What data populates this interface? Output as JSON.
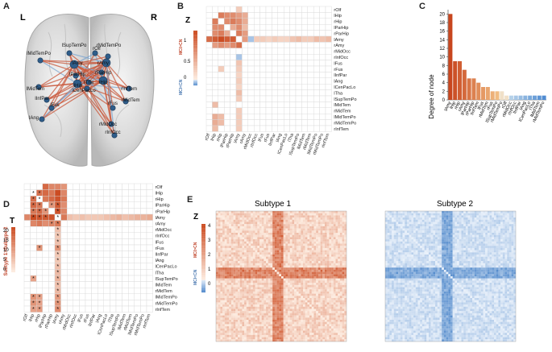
{
  "panels": {
    "a": {
      "letter": "A",
      "left": "L",
      "right": "R",
      "nodes": [
        "lSupTemPo",
        "rOlf",
        "rMidTemPo",
        "lMidTemPo",
        "lAmy",
        "rAmy",
        "lParHip",
        "lHip",
        "ITha",
        "rHip",
        "lCenPacLo",
        "rParHip",
        "lMidTem",
        "rInfTem",
        "lInfPar",
        "lFus",
        "rFus",
        "rMidTem",
        "lAng",
        "rMidOcc",
        "rInfOcc"
      ]
    },
    "b": {
      "letter": "B",
      "cbar_title": "Z",
      "cbar_top": "MCI>CN",
      "cbar_bottom": "MCI<CN",
      "ticks": [
        "1",
        "0.5",
        "0"
      ]
    },
    "c": {
      "letter": "C",
      "ylabel": "Degree of node",
      "yticks": [
        "0",
        "2",
        "4",
        "6",
        "8",
        "10",
        "12",
        "14",
        "16",
        "18",
        "20"
      ]
    },
    "d": {
      "letter": "D",
      "cbar_title": "T",
      "cbar_label": "Subtype 1>Subtype 2",
      "ticks": [
        "20",
        "15",
        "10",
        "5",
        "0"
      ]
    },
    "e": {
      "letter": "E",
      "title1": "Subtype 1",
      "title2": "Subtype 2",
      "cbar_title": "Z",
      "cbar_top": "MCI>CN",
      "cbar_bottom": "MCI<CN",
      "ticks": [
        "4",
        "3",
        "2",
        "1",
        "0"
      ]
    }
  },
  "regions": [
    "rOlf",
    "lHip",
    "rHip",
    "lParHip",
    "rParHip",
    "lAmy",
    "rAmy",
    "rMidOcc",
    "rInfOcc",
    "lFus",
    "rFus",
    "lInfPar",
    "lAng",
    "lCenPacLo",
    "lTha",
    "lSupTemPo",
    "lMidTem",
    "rMidTem",
    "lMidTemPo",
    "rMidTemPo",
    "rInfTem"
  ],
  "chart_data": [
    {
      "type": "heatmap",
      "id": "B",
      "rows": [
        "rOlf",
        "lHip",
        "rHip",
        "lParHip",
        "rParHip",
        "lAmy",
        "rAmy",
        "rMidOcc",
        "rInfOcc",
        "lFus",
        "rFus",
        "lInfPar",
        "lAng",
        "lCenPacLo",
        "lTha",
        "lSupTemPo",
        "lMidTem",
        "rMidTem",
        "lMidTemPo",
        "rMidTemPo",
        "rInfTem"
      ],
      "columns": [
        "rOlf",
        "lHip",
        "rHip",
        "lParHip",
        "rParHip",
        "lAmy",
        "rAmy",
        "rMidOcc",
        "rInfOcc",
        "lFus",
        "rFus",
        "lInfPar",
        "lAng",
        "lCenPacLo",
        "lTha",
        "lSupTemPo",
        "lMidTem",
        "rMidTem",
        "lMidTemPo",
        "rMidTemPo",
        "rInfTem"
      ],
      "cells": [
        [
          0,
          5,
          0.2
        ],
        [
          1,
          2,
          0.7
        ],
        [
          1,
          3,
          0.6
        ],
        [
          1,
          4,
          0.6
        ],
        [
          1,
          5,
          0.5
        ],
        [
          1,
          6,
          0.4
        ],
        [
          2,
          1,
          0.7
        ],
        [
          2,
          3,
          0.6
        ],
        [
          2,
          4,
          0.7
        ],
        [
          2,
          5,
          0.6
        ],
        [
          2,
          6,
          0.4
        ],
        [
          3,
          1,
          0.6
        ],
        [
          3,
          2,
          0.6
        ],
        [
          3,
          4,
          0.4
        ],
        [
          3,
          5,
          0.6
        ],
        [
          3,
          6,
          0.3
        ],
        [
          4,
          1,
          0.6
        ],
        [
          4,
          2,
          0.7
        ],
        [
          4,
          3,
          0.4
        ],
        [
          4,
          5,
          0.7
        ],
        [
          4,
          6,
          0.5
        ],
        [
          5,
          0,
          0.8
        ],
        [
          5,
          1,
          0.9
        ],
        [
          5,
          2,
          1.0
        ],
        [
          5,
          3,
          0.9
        ],
        [
          5,
          4,
          0.9
        ],
        [
          5,
          6,
          0.5
        ],
        [
          5,
          7,
          -0.4
        ],
        [
          5,
          8,
          0.2
        ],
        [
          5,
          9,
          0.2
        ],
        [
          5,
          10,
          0.15
        ],
        [
          5,
          11,
          0.2
        ],
        [
          5,
          12,
          0.15
        ],
        [
          5,
          13,
          0.15
        ],
        [
          5,
          14,
          0.25
        ],
        [
          5,
          15,
          0.3
        ],
        [
          5,
          16,
          0.2
        ],
        [
          5,
          17,
          0.2
        ],
        [
          5,
          18,
          0.3
        ],
        [
          5,
          19,
          0.25
        ],
        [
          5,
          20,
          0.3
        ],
        [
          6,
          1,
          0.5
        ],
        [
          6,
          2,
          0.6
        ],
        [
          6,
          3,
          0.5
        ],
        [
          6,
          4,
          0.6
        ],
        [
          6,
          5,
          0.8
        ],
        [
          8,
          5,
          -0.4
        ],
        [
          9,
          5,
          0.25
        ],
        [
          10,
          2,
          0.2
        ],
        [
          10,
          5,
          0.2
        ],
        [
          11,
          5,
          0.15
        ],
        [
          12,
          5,
          0.2
        ],
        [
          13,
          5,
          0.15
        ],
        [
          14,
          5,
          0.3
        ],
        [
          15,
          5,
          0.2
        ],
        [
          16,
          1,
          0.3
        ],
        [
          17,
          5,
          0.2
        ],
        [
          18,
          1,
          0.4
        ],
        [
          18,
          2,
          0.3
        ],
        [
          18,
          5,
          0.2
        ],
        [
          19,
          1,
          0.4
        ],
        [
          19,
          2,
          0.3
        ],
        [
          19,
          5,
          0.2
        ],
        [
          20,
          1,
          0.3
        ],
        [
          20,
          5,
          0.2
        ]
      ],
      "zlim": [
        -1,
        1
      ]
    },
    {
      "type": "bar",
      "id": "C",
      "categories": [
        "lAmy",
        "lHip",
        "rHip",
        "rAmy",
        "lParHip",
        "rParHip",
        "lInfTem",
        "lFus",
        "rMidTem",
        "rFus",
        "lSupTemPo",
        "rMidTemPo",
        "rOlf",
        "rMidOcc",
        "rInfOcc",
        "lInfPar",
        "lAng",
        "lCenPacLo",
        "ITha",
        "lMidTem",
        "rMidTemPo"
      ],
      "values": [
        20,
        9,
        9,
        7,
        5,
        5,
        4,
        3,
        3,
        2,
        2,
        2,
        1,
        1,
        1,
        1,
        1,
        1,
        1,
        1,
        1
      ],
      "ylabel": "Degree of node",
      "ylim": [
        0,
        21
      ]
    },
    {
      "type": "heatmap",
      "id": "D",
      "rows": [
        "rOlf",
        "lHip",
        "rHip",
        "lParHip",
        "rParHip",
        "lAmy",
        "rAmy",
        "rMidOcc",
        "rInfOcc",
        "lFus",
        "rFus",
        "lInfPar",
        "lAng",
        "lCenPacLo",
        "lTha",
        "lSupTemPo",
        "lMidTem",
        "rMidTem",
        "lMidTemPo",
        "rMidTemPo",
        "rInfTem"
      ],
      "columns": [
        "rOlf",
        "lHip",
        "rHip",
        "lParHip",
        "rParHip",
        "lAmy",
        "rAmy",
        "rMidOcc",
        "rInfOcc",
        "lFus",
        "rFus",
        "lInfPar",
        "lAng",
        "lCenPacLo",
        "lTha",
        "lSupTemPo",
        "lMidTem",
        "rMidTem",
        "lMidTemPo",
        "rMidTemPo",
        "rInfTem"
      ],
      "cells": [
        [
          0,
          3,
          18
        ],
        [
          0,
          4,
          14
        ],
        [
          0,
          5,
          14
        ],
        [
          0,
          6,
          12
        ],
        [
          1,
          2,
          17
        ],
        [
          1,
          3,
          18
        ],
        [
          1,
          4,
          16
        ],
        [
          1,
          5,
          22
        ],
        [
          1,
          6,
          14
        ],
        [
          2,
          1,
          17
        ],
        [
          2,
          3,
          16
        ],
        [
          2,
          4,
          18
        ],
        [
          2,
          5,
          21
        ],
        [
          2,
          6,
          16
        ],
        [
          3,
          1,
          18
        ],
        [
          3,
          2,
          16
        ],
        [
          3,
          4,
          12
        ],
        [
          3,
          5,
          20
        ],
        [
          3,
          6,
          13
        ],
        [
          4,
          1,
          16
        ],
        [
          4,
          2,
          18
        ],
        [
          4,
          3,
          12
        ],
        [
          4,
          5,
          21
        ],
        [
          4,
          6,
          14
        ],
        [
          5,
          0,
          14
        ],
        [
          5,
          1,
          22
        ],
        [
          5,
          2,
          21
        ],
        [
          5,
          3,
          20
        ],
        [
          5,
          4,
          21
        ],
        [
          5,
          6,
          16
        ],
        [
          5,
          7,
          6
        ],
        [
          5,
          8,
          5
        ],
        [
          5,
          9,
          6
        ],
        [
          5,
          10,
          5
        ],
        [
          5,
          11,
          5
        ],
        [
          5,
          12,
          5
        ],
        [
          5,
          13,
          6
        ],
        [
          5,
          14,
          7
        ],
        [
          5,
          15,
          8
        ],
        [
          5,
          16,
          6
        ],
        [
          5,
          17,
          7
        ],
        [
          5,
          18,
          8
        ],
        [
          5,
          19,
          8
        ],
        [
          5,
          20,
          9
        ],
        [
          6,
          1,
          14
        ],
        [
          6,
          2,
          16
        ],
        [
          6,
          3,
          13
        ],
        [
          6,
          4,
          14
        ],
        [
          6,
          5,
          16
        ],
        [
          7,
          5,
          6
        ],
        [
          8,
          5,
          5
        ],
        [
          9,
          5,
          6
        ],
        [
          10,
          2,
          12
        ],
        [
          10,
          5,
          12
        ],
        [
          11,
          5,
          5
        ],
        [
          12,
          5,
          5
        ],
        [
          13,
          5,
          6
        ],
        [
          14,
          5,
          7
        ],
        [
          15,
          5,
          8
        ],
        [
          15,
          1,
          10
        ],
        [
          16,
          5,
          6
        ],
        [
          17,
          5,
          7
        ],
        [
          18,
          1,
          12
        ],
        [
          18,
          2,
          10
        ],
        [
          18,
          5,
          11
        ],
        [
          19,
          1,
          12
        ],
        [
          19,
          2,
          10
        ],
        [
          19,
          5,
          12
        ],
        [
          20,
          1,
          10
        ],
        [
          20,
          2,
          11
        ],
        [
          20,
          5,
          13
        ]
      ],
      "stars": [
        [
          1,
          1
        ],
        [
          1,
          2
        ],
        [
          2,
          1
        ],
        [
          2,
          2
        ],
        [
          3,
          1
        ],
        [
          3,
          2
        ],
        [
          3,
          4
        ],
        [
          3,
          5
        ],
        [
          4,
          1
        ],
        [
          4,
          2
        ],
        [
          4,
          3
        ],
        [
          4,
          5
        ],
        [
          5,
          1
        ],
        [
          5,
          2
        ],
        [
          5,
          3
        ],
        [
          5,
          5
        ],
        [
          6,
          4
        ],
        [
          6,
          5
        ],
        [
          7,
          5
        ],
        [
          8,
          5
        ],
        [
          9,
          5
        ],
        [
          10,
          5
        ],
        [
          11,
          5
        ],
        [
          12,
          5
        ],
        [
          13,
          5
        ],
        [
          14,
          5
        ],
        [
          15,
          5
        ],
        [
          16,
          5
        ],
        [
          17,
          5
        ],
        [
          18,
          5
        ],
        [
          19,
          5
        ],
        [
          20,
          5
        ],
        [
          10,
          2
        ],
        [
          15,
          1
        ],
        [
          18,
          1
        ],
        [
          18,
          2
        ],
        [
          19,
          1
        ],
        [
          19,
          2
        ],
        [
          20,
          1
        ],
        [
          20,
          2
        ]
      ],
      "zlim": [
        0,
        22
      ]
    }
  ]
}
